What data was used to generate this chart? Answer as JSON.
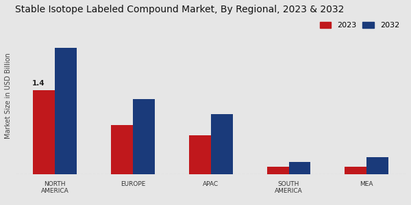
{
  "title": "Stable Isotope Labeled Compound Market, By Regional, 2023 & 2032",
  "ylabel": "Market Size in USD Billion",
  "categories": [
    "NORTH\nAMERICA",
    "EUROPE",
    "APAC",
    "SOUTH\nAMERICA",
    "MEA"
  ],
  "values_2023": [
    1.4,
    0.82,
    0.65,
    0.12,
    0.12
  ],
  "values_2032": [
    2.1,
    1.25,
    1.0,
    0.2,
    0.28
  ],
  "color_2023": "#c0181c",
  "color_2032": "#1a3a7a",
  "annotation_text": "1.4",
  "bar_width": 0.28,
  "background_color": "#e6e6e6",
  "title_fontsize": 10,
  "legend_labels": [
    "2023",
    "2032"
  ],
  "bottom_bar_color": "#c0181c",
  "ylim": [
    0,
    2.6
  ]
}
